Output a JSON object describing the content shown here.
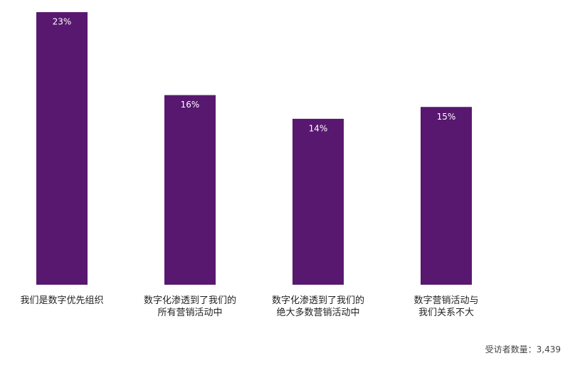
{
  "chart_data": {
    "type": "bar",
    "categories": [
      "我们是数字优先组织",
      "数字化渗透到了我们的\n所有营销活动中",
      "数字化渗透到了我们的\n绝大多数营销活动中",
      "数字营销活动与\n我们关系不大"
    ],
    "values": [
      23,
      16,
      14,
      15
    ],
    "value_labels": [
      "23%",
      "16%",
      "14%",
      "15%"
    ],
    "color": "#58186f",
    "note": "受访者数量：3,439"
  }
}
